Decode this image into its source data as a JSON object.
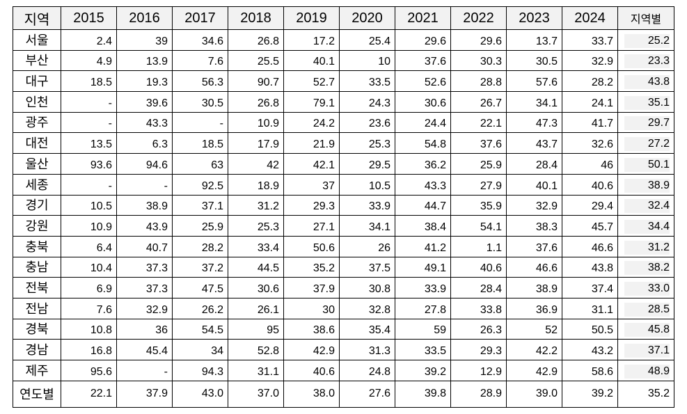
{
  "table": {
    "header": [
      "지역",
      "2015",
      "2016",
      "2017",
      "2018",
      "2019",
      "2020",
      "2021",
      "2022",
      "2023",
      "2024",
      "지역별"
    ],
    "rows": [
      {
        "region": "서울",
        "values": [
          "2.4",
          "39",
          "34.6",
          "26.8",
          "17.2",
          "25.4",
          "29.6",
          "29.6",
          "13.7",
          "33.7"
        ],
        "avg": "25.2"
      },
      {
        "region": "부산",
        "values": [
          "4.9",
          "13.9",
          "7.6",
          "25.5",
          "40.1",
          "10",
          "37.6",
          "30.3",
          "30.5",
          "32.9"
        ],
        "avg": "23.3"
      },
      {
        "region": "대구",
        "values": [
          "18.5",
          "19.3",
          "56.3",
          "90.7",
          "52.7",
          "33.5",
          "52.6",
          "28.8",
          "57.6",
          "28.2"
        ],
        "avg": "43.8"
      },
      {
        "region": "인천",
        "values": [
          "-",
          "39.6",
          "30.5",
          "26.8",
          "79.1",
          "24.3",
          "30.6",
          "26.7",
          "34.1",
          "24.1"
        ],
        "avg": "35.1"
      },
      {
        "region": "광주",
        "values": [
          "-",
          "43.3",
          "-",
          "10.9",
          "24.2",
          "23.6",
          "24.4",
          "22.1",
          "47.3",
          "41.7"
        ],
        "avg": "29.7"
      },
      {
        "region": "대전",
        "values": [
          "13.5",
          "6.3",
          "18.5",
          "17.9",
          "21.9",
          "25.3",
          "54.8",
          "37.6",
          "43.7",
          "32.6"
        ],
        "avg": "27.2"
      },
      {
        "region": "울산",
        "values": [
          "93.6",
          "94.6",
          "63",
          "42",
          "42.1",
          "29.5",
          "36.2",
          "25.9",
          "28.4",
          "46"
        ],
        "avg": "50.1"
      },
      {
        "region": "세종",
        "values": [
          "-",
          "-",
          "92.5",
          "18.9",
          "37",
          "10.5",
          "43.3",
          "27.9",
          "40.1",
          "40.6"
        ],
        "avg": "38.9"
      },
      {
        "region": "경기",
        "values": [
          "10.5",
          "38.9",
          "37.1",
          "31.2",
          "29.3",
          "33.9",
          "44.7",
          "35.9",
          "32.9",
          "29.4"
        ],
        "avg": "32.4"
      },
      {
        "region": "강원",
        "values": [
          "10.9",
          "43.9",
          "25.9",
          "25.3",
          "27.1",
          "34.1",
          "38.4",
          "54.1",
          "38.3",
          "45.7"
        ],
        "avg": "34.4"
      },
      {
        "region": "충북",
        "values": [
          "6.4",
          "40.7",
          "28.2",
          "33.4",
          "50.6",
          "26",
          "41.2",
          "1.1",
          "37.6",
          "46.6"
        ],
        "avg": "31.2"
      },
      {
        "region": "충남",
        "values": [
          "10.4",
          "37.3",
          "37.2",
          "44.5",
          "35.2",
          "37.5",
          "49.1",
          "40.6",
          "46.6",
          "43.8"
        ],
        "avg": "38.2"
      },
      {
        "region": "전북",
        "values": [
          "6.9",
          "37.3",
          "47.5",
          "30.6",
          "37.9",
          "30.8",
          "33.9",
          "28.4",
          "38.9",
          "37.4"
        ],
        "avg": "33.0"
      },
      {
        "region": "전남",
        "values": [
          "7.6",
          "32.9",
          "26.2",
          "26.1",
          "30",
          "32.8",
          "27.8",
          "33.8",
          "36.9",
          "31.1"
        ],
        "avg": "28.5"
      },
      {
        "region": "경북",
        "values": [
          "10.8",
          "36",
          "54.5",
          "95",
          "38.6",
          "35.4",
          "59",
          "26.3",
          "52",
          "50.5"
        ],
        "avg": "45.8"
      },
      {
        "region": "경남",
        "values": [
          "16.8",
          "45.4",
          "34",
          "52.8",
          "42.9",
          "31.3",
          "33.5",
          "29.3",
          "42.2",
          "43.2"
        ],
        "avg": "37.1"
      },
      {
        "region": "제주",
        "values": [
          "95.6",
          "-",
          "94.3",
          "31.1",
          "40.6",
          "24.8",
          "39.2",
          "12.9",
          "42.9",
          "58.6"
        ],
        "avg": "48.9"
      }
    ],
    "total": {
      "region": "연도별",
      "values": [
        "22.1",
        "37.9",
        "43.0",
        "37.0",
        "38.0",
        "27.6",
        "39.8",
        "28.9",
        "39.0",
        "39.2"
      ],
      "avg": "35.2"
    }
  }
}
